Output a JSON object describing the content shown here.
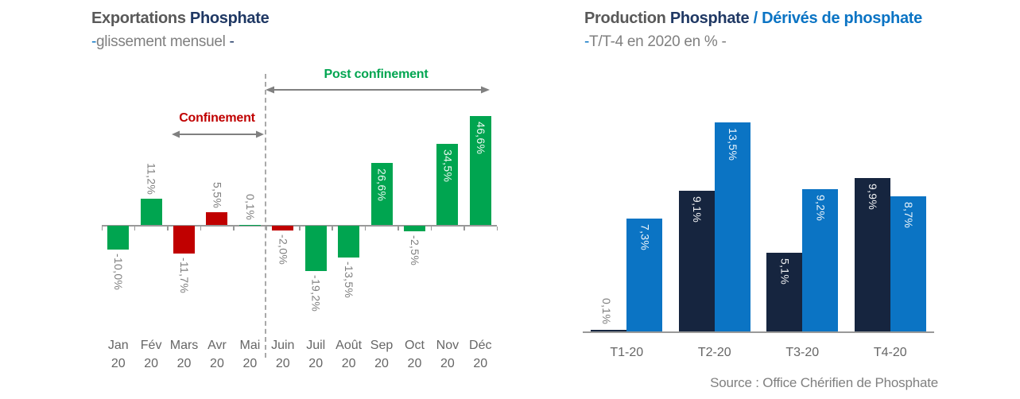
{
  "colors": {
    "green": "#00A550",
    "red": "#C00000",
    "navy": "#1F3864",
    "dark_navy": "#16253F",
    "blue": "#0B74C4",
    "dark_gray": "#595959",
    "gray_text": "#808080",
    "label_gray": "#7F7F7F",
    "axis": "#999999"
  },
  "left_panel": {
    "title": {
      "part1": "Exportations ",
      "part2": "Phosphate"
    },
    "subtitle": {
      "lead_dash": "-",
      "text": "glissement mensuel ",
      "trail_dash": "-"
    }
  },
  "right_panel": {
    "title": {
      "part1": "Production ",
      "part2": "Phosphate ",
      "part3": "/ Dérivés de phosphate"
    },
    "subtitle": {
      "lead_dash": "-",
      "text": "T/T-4 en 2020 en % ",
      "trail_dash": "-"
    },
    "source": "Source : Office Chérifien de Phosphate"
  },
  "chart_data": [
    {
      "id": "exportations-phosphate-glissement-mensuel",
      "type": "bar",
      "title": "Exportations Phosphate",
      "subtitle": "-glissement mensuel -",
      "categories": [
        "Jan",
        "Fév",
        "Mars",
        "Avr",
        "Mai",
        "Juin",
        "Juil",
        "Août",
        "Sep",
        "Oct",
        "Nov",
        "Déc"
      ],
      "year_label": "20",
      "values": [
        -10.0,
        11.2,
        -11.7,
        5.5,
        0.1,
        -2.0,
        -19.2,
        -13.5,
        26.6,
        -2.5,
        34.5,
        46.6
      ],
      "labels": [
        "-10,0%",
        "11,2%",
        "-11,7%",
        "5,5%",
        "0,1%",
        "-2,0%",
        "-19,2%",
        "-13,5%",
        "26,6%",
        "-2,5%",
        "34,5%",
        "46,6%"
      ],
      "bar_colors": [
        "green",
        "green",
        "red",
        "red",
        "green",
        "red",
        "green",
        "green",
        "green",
        "green",
        "green",
        "green"
      ],
      "label_placement": [
        "below",
        "above",
        "below",
        "above",
        "above",
        "below",
        "below",
        "below",
        "inside",
        "below",
        "inside",
        "inside"
      ],
      "ylim": [
        -25,
        50
      ],
      "grid": false,
      "annotations": [
        {
          "text": "Confinement",
          "color": "#C00000",
          "arrow_from": "Mars",
          "arrow_to": "Mai"
        },
        {
          "text": "Post confinement",
          "color": "#00A550",
          "arrow_from": "Juin",
          "arrow_to": "Déc"
        }
      ],
      "divider_after": "Mai"
    },
    {
      "id": "production-phosphate-derives-t-sur-t4-2020",
      "type": "grouped_bar",
      "title": "Production Phosphate / Dérivés de phosphate",
      "subtitle": "-T/T-4 en 2020 en % -",
      "categories": [
        "T1-20",
        "T2-20",
        "T3-20",
        "T4-20"
      ],
      "series": [
        {
          "name": "Phosphate",
          "color": "#16253F",
          "values": [
            0.1,
            9.1,
            5.1,
            9.9
          ],
          "labels": [
            "0,1%",
            "9,1%",
            "5,1%",
            "9,9%"
          ],
          "label_placement": [
            "above",
            "inside",
            "inside",
            "inside"
          ]
        },
        {
          "name": "Dérivés de phosphate",
          "color": "#0B74C4",
          "values": [
            7.3,
            13.5,
            9.2,
            8.7
          ],
          "labels": [
            "7,3%",
            "13,5%",
            "9,2%",
            "8,7%"
          ],
          "label_placement": [
            "inside",
            "inside",
            "inside",
            "inside"
          ]
        }
      ],
      "ylim": [
        0,
        14
      ],
      "grid": false,
      "legend": "none"
    }
  ]
}
